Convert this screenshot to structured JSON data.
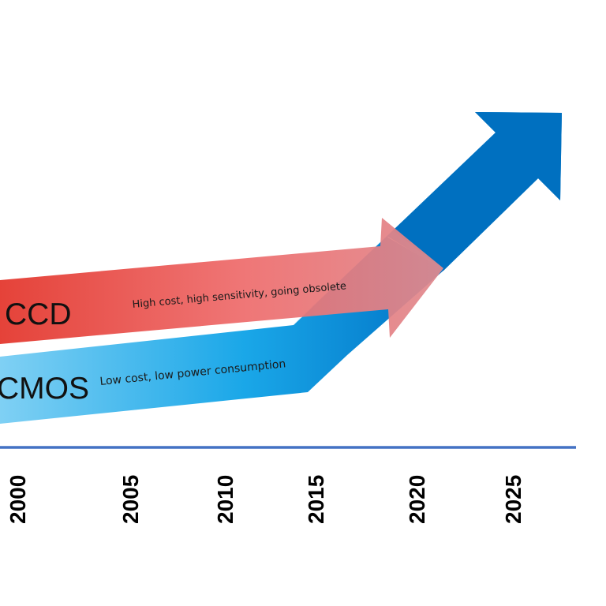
{
  "arrows": [
    {
      "id": "cmos",
      "label": "CMOS",
      "note": "Low cost, low power consumption",
      "colors": [
        "#7fd0f4",
        "#1aa7e8",
        "#0073c6"
      ]
    },
    {
      "id": "ccd",
      "label": "CCD",
      "note": "High cost, high sensitivity, going obsolete",
      "colors": [
        "#e3342a",
        "#ee6c6c",
        "#e08a8f"
      ]
    }
  ],
  "timeline": {
    "axis_color": "#4472c4",
    "years": [
      "2000",
      "2005",
      "2010",
      "2015",
      "2020",
      "2025"
    ]
  }
}
